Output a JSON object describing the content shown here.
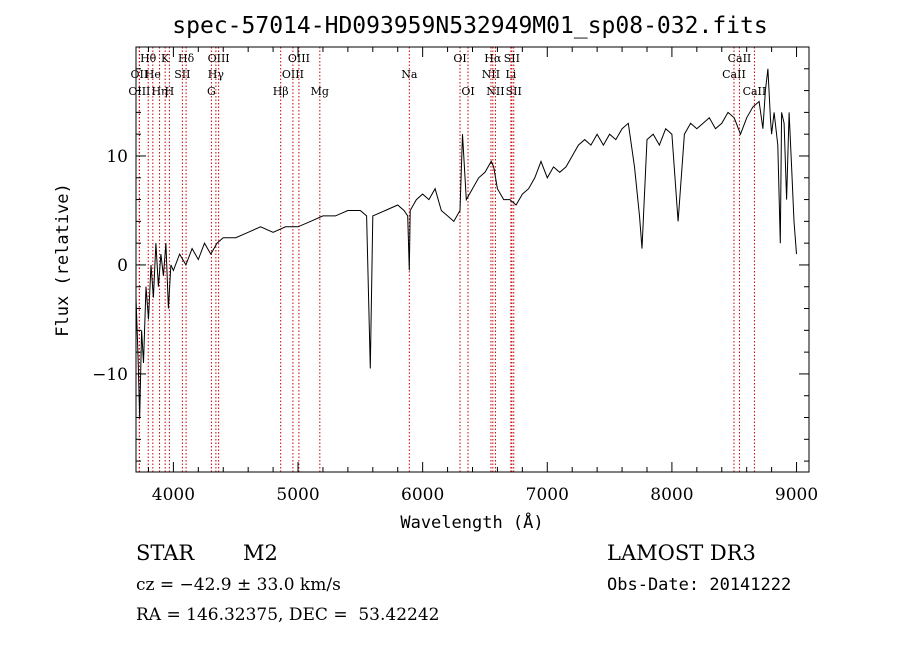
{
  "chart_data": {
    "type": "line",
    "title": "spec-57014-HD093959N532949M01_sp08-032.fits",
    "xlabel": "Wavelength (Å)",
    "ylabel": "Flux (relative)",
    "xlim": [
      3700,
      9100
    ],
    "ylim": [
      -19,
      20
    ],
    "xticks": [
      4000,
      5000,
      6000,
      7000,
      8000,
      9000
    ],
    "xtick_labels": [
      "4000",
      "5000",
      "6000",
      "7000",
      "8000",
      "9000"
    ],
    "yticks": [
      -10,
      0,
      10
    ],
    "ytick_labels": [
      "−10",
      "0",
      "10"
    ],
    "x_minor_step": 200,
    "y_minor_step": 2,
    "series": [
      {
        "name": "flux",
        "x": [
          3700,
          3715,
          3730,
          3745,
          3760,
          3780,
          3800,
          3820,
          3840,
          3860,
          3880,
          3900,
          3920,
          3940,
          3960,
          3980,
          4000,
          4050,
          4100,
          4150,
          4200,
          4250,
          4300,
          4350,
          4400,
          4500,
          4600,
          4700,
          4800,
          4900,
          5000,
          5100,
          5200,
          5300,
          5400,
          5500,
          5550,
          5580,
          5600,
          5700,
          5800,
          5850,
          5880,
          5893,
          5900,
          5950,
          6000,
          6050,
          6100,
          6150,
          6200,
          6250,
          6300,
          6320,
          6350,
          6400,
          6450,
          6500,
          6550,
          6570,
          6600,
          6650,
          6700,
          6750,
          6800,
          6850,
          6900,
          6950,
          7000,
          7050,
          7100,
          7150,
          7200,
          7250,
          7300,
          7350,
          7400,
          7450,
          7500,
          7550,
          7600,
          7650,
          7700,
          7740,
          7760,
          7800,
          7850,
          7900,
          7950,
          8000,
          8050,
          8100,
          8150,
          8200,
          8250,
          8300,
          8350,
          8400,
          8450,
          8500,
          8550,
          8600,
          8650,
          8700,
          8730,
          8750,
          8770,
          8790,
          8800,
          8820,
          8850,
          8870,
          8880,
          8900,
          8920,
          8940,
          8960,
          8980,
          9000
        ],
        "y": [
          -3,
          -8,
          -14,
          -6,
          -9,
          -2,
          -5,
          0,
          -3,
          2,
          -2,
          1,
          -1,
          2,
          -4,
          0,
          -0.5,
          1,
          0,
          1.5,
          0.5,
          2,
          1,
          2,
          2.5,
          2.5,
          3,
          3.5,
          3,
          3.5,
          3.5,
          4,
          4.5,
          4.5,
          5,
          5,
          4.5,
          -9.5,
          4.5,
          5,
          5.5,
          5,
          4.5,
          -0.5,
          5,
          6,
          6.5,
          6,
          7,
          5,
          4.5,
          4,
          5,
          12,
          6,
          7,
          8,
          8.5,
          9.5,
          9,
          7,
          6,
          6,
          5.5,
          6.5,
          7,
          8,
          9.5,
          8,
          9,
          8.5,
          9,
          10,
          11,
          11.5,
          11,
          12,
          11,
          12,
          11.5,
          12.5,
          13,
          9,
          4.5,
          1.5,
          11.5,
          12,
          11,
          12.5,
          12,
          4,
          12,
          13,
          12.5,
          13,
          13.5,
          12.5,
          13,
          14,
          13.5,
          12,
          13.5,
          14.5,
          15,
          12.5,
          16,
          18,
          13.5,
          12,
          14,
          11,
          2,
          14,
          13,
          6,
          14,
          9,
          4,
          1
        ]
      }
    ],
    "line_markers": [
      {
        "label": "Hθ",
        "wavelength": 3798,
        "row": 0
      },
      {
        "label": "OII",
        "wavelength": 3727,
        "row": 1
      },
      {
        "label": "OIII",
        "wavelength": 3727,
        "row": 2
      },
      {
        "label": "He",
        "wavelength": 3835,
        "row": 1
      },
      {
        "label": "Hη",
        "wavelength": 3889,
        "row": 2
      },
      {
        "label": "K",
        "wavelength": 3934,
        "row": 0
      },
      {
        "label": "H",
        "wavelength": 3968,
        "row": 2
      },
      {
        "label": "Hδ",
        "wavelength": 4102,
        "row": 0
      },
      {
        "label": "SII",
        "wavelength": 4072,
        "row": 1
      },
      {
        "label": "OIII",
        "wavelength": 4363,
        "row": 0
      },
      {
        "label": "Hγ",
        "wavelength": 4341,
        "row": 1
      },
      {
        "label": "G",
        "wavelength": 4305,
        "row": 2
      },
      {
        "label": "Hβ",
        "wavelength": 4861,
        "row": 2
      },
      {
        "label": "OIII",
        "wavelength": 5007,
        "row": 0
      },
      {
        "label": "OIII",
        "wavelength": 4959,
        "row": 1
      },
      {
        "label": "Mg",
        "wavelength": 5175,
        "row": 2
      },
      {
        "label": "Na",
        "wavelength": 5893,
        "row": 1
      },
      {
        "label": "OI",
        "wavelength": 6300,
        "row": 0
      },
      {
        "label": "OI",
        "wavelength": 6364,
        "row": 2
      },
      {
        "label": "Hα",
        "wavelength": 6563,
        "row": 0
      },
      {
        "label": "SII",
        "wavelength": 6716,
        "row": 0
      },
      {
        "label": "NII",
        "wavelength": 6548,
        "row": 1
      },
      {
        "label": "Li",
        "wavelength": 6708,
        "row": 1
      },
      {
        "label": "NII",
        "wavelength": 6584,
        "row": 2
      },
      {
        "label": "SII",
        "wavelength": 6731,
        "row": 2
      },
      {
        "label": "CaII",
        "wavelength": 8542,
        "row": 0
      },
      {
        "label": "CaII",
        "wavelength": 8498,
        "row": 1
      },
      {
        "label": "CaII",
        "wavelength": 8662,
        "row": 2
      }
    ],
    "marker_color": "#cc0000",
    "line_color": "#000000"
  },
  "info": {
    "class_label": "STAR",
    "subclass_label": "M2",
    "survey_label": "LAMOST DR3",
    "cz_text": "cz = −42.9 ± 33.0 km/s",
    "obs_date_text": "Obs-Date: 20141222",
    "coords_text": "RA = 146.32375, DEC =  53.42242"
  }
}
